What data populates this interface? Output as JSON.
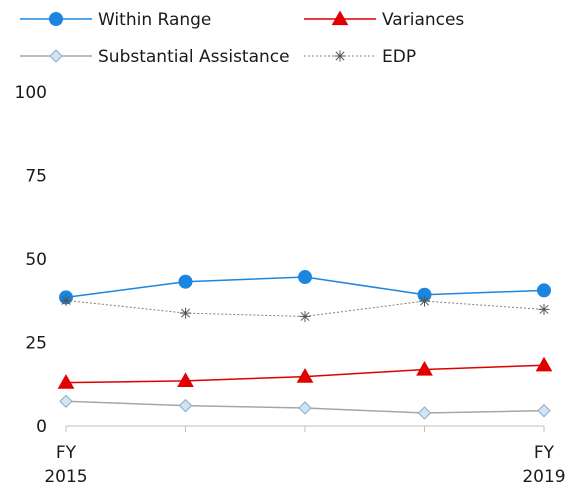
{
  "chart_data": {
    "type": "line",
    "title": "",
    "xlabel": "",
    "ylabel": "",
    "ylim": [
      0,
      100
    ],
    "yticks": [
      0,
      25,
      50,
      75,
      100
    ],
    "grid": false,
    "legend_position": "top",
    "x": [
      "FY 2015",
      "",
      "",
      "",
      "FY 2019"
    ],
    "x_tick_labels": [
      {
        "line1": "FY",
        "line2": "2015"
      },
      {
        "line1": "",
        "line2": ""
      },
      {
        "line1": "",
        "line2": ""
      },
      {
        "line1": "",
        "line2": ""
      },
      {
        "line1": "FY",
        "line2": "2019"
      }
    ],
    "series": [
      {
        "name": "Within Range",
        "values": [
          38.5,
          43.2,
          44.6,
          39.3,
          40.6
        ],
        "color": "#1a86e0",
        "marker": "circle",
        "dash": "solid"
      },
      {
        "name": "Variances",
        "values": [
          13.0,
          13.5,
          14.8,
          16.9,
          18.2
        ],
        "color": "#e00000",
        "marker": "triangle",
        "dash": "solid"
      },
      {
        "name": "Substantial Assistance",
        "values": [
          7.4,
          6.1,
          5.4,
          3.9,
          4.6
        ],
        "color": "#a6a6a6",
        "marker_fill": "#cfe4f7",
        "marker_stroke": "#8fa9c2",
        "marker": "diamond",
        "dash": "solid"
      },
      {
        "name": "EDP",
        "values": [
          37.6,
          33.8,
          32.8,
          37.4,
          34.9
        ],
        "color": "#7f7f7f",
        "marker": "asterisk",
        "dash": "dotted"
      }
    ]
  }
}
